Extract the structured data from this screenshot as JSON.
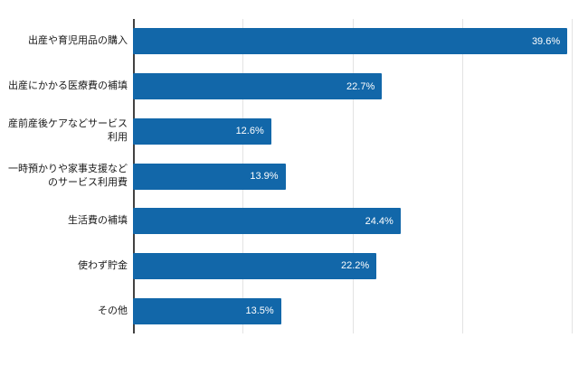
{
  "chart_data": {
    "type": "bar",
    "orientation": "horizontal",
    "title": "",
    "xlabel": "",
    "ylabel": "",
    "categories": [
      "出産や育児用品の購入",
      "出産にかかる医療費の補填",
      "産前産後ケアなどサービス利用",
      "一時預かりや家事支援などのサービス利用費",
      "生活費の補填",
      "使わず貯金",
      "その他"
    ],
    "values": [
      39.6,
      22.7,
      12.6,
      13.9,
      24.4,
      22.2,
      13.5
    ],
    "value_labels": [
      "39.6%",
      "22.7%",
      "12.6%",
      "13.9%",
      "24.4%",
      "22.2%",
      "13.5%"
    ],
    "xlim": [
      0,
      40
    ],
    "gridline_interval": 10,
    "tick_labels_visible": false,
    "legend": "none",
    "grid": true,
    "bar_color": "#1267A9",
    "value_label_color": "#FFFFFF",
    "category_label_color": "#1A1A1A",
    "axis_line_color": "#424242",
    "gridline_color": "#E3E3E3",
    "background_color": "#FFFFFF"
  }
}
